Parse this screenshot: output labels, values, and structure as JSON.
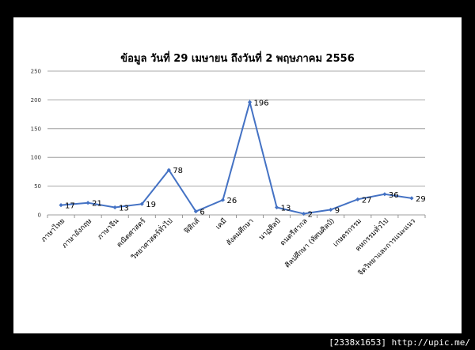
{
  "chart_data": {
    "type": "line",
    "title": "ข้อมูล วันที่ 29 เมษายน ถึงวันที่ 2 พฤษภาคม 2556",
    "categories": [
      "ภาษาไทย",
      "ภาษาอังกฤษ",
      "ภาษาจีน",
      "คณิตศาสตร์",
      "วิทยาศาสตร์ทั่วไป",
      "ฟิสิกส์",
      "เคมี",
      "สังคมศึกษา",
      "นาฏศิลป์",
      "ดนตรีสากล",
      "ศิลปศึกษา (ทัศนศิลป์)",
      "เกษตรกรรม",
      "คหกรรมทั่วไป",
      "จิตวิทยาและการแนะแนว"
    ],
    "series": [
      {
        "values": [
          17,
          21,
          13,
          19,
          78,
          6,
          26,
          196,
          13,
          2,
          9,
          27,
          36,
          29
        ]
      }
    ],
    "ylim": [
      0,
      250
    ],
    "yticks": [
      0,
      50,
      100,
      150,
      200,
      250
    ],
    "grid": true,
    "legend": "none",
    "series_color": "#4472C4",
    "grid_color": "#8c8c8c"
  },
  "watermark": "[2338x1653] http://upic.me/"
}
